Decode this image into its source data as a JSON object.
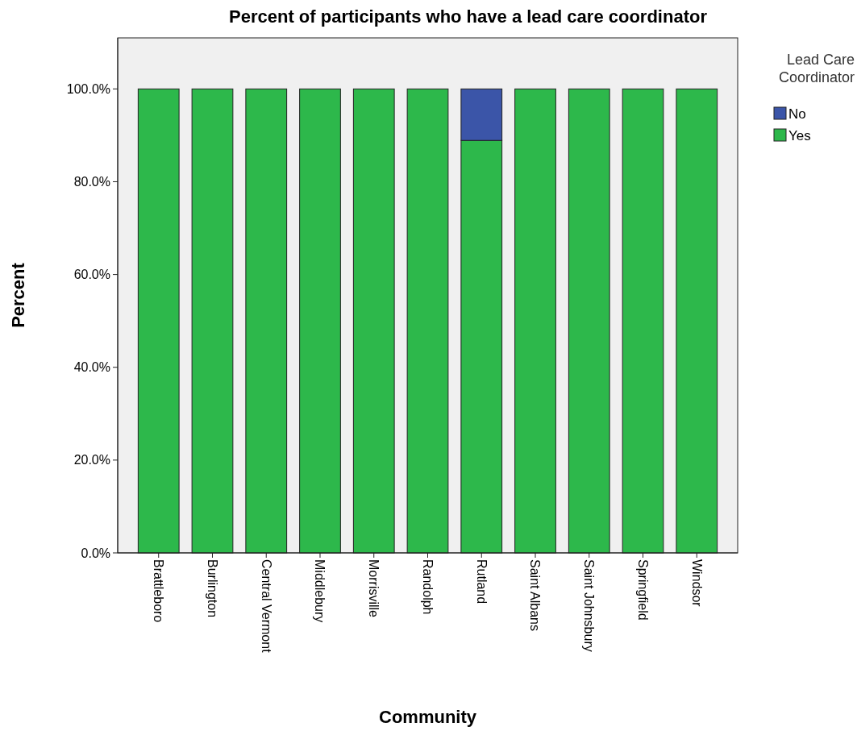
{
  "chart_data": {
    "type": "bar",
    "title": "Percent of participants who have a lead care coordinator",
    "xlabel": "Community",
    "ylabel": "Percent",
    "legend_title": "Lead Care Coordinator",
    "categories": [
      "Brattleboro",
      "Burlington",
      "Central Vermont",
      "Middlebury",
      "Morrisville",
      "Randolph",
      "Rutland",
      "Saint Albans",
      "Saint Johnsbury",
      "Springfield",
      "Windsor"
    ],
    "stacked": true,
    "legend": "top right",
    "grid": false,
    "series": [
      {
        "name": "Yes",
        "color": "#2db84b",
        "values": [
          100,
          100,
          100,
          100,
          100,
          100,
          88.9,
          100,
          100,
          100,
          100
        ]
      },
      {
        "name": "No",
        "color": "#3b55a8",
        "values": [
          null,
          null,
          null,
          null,
          null,
          null,
          11.1,
          null,
          null,
          null,
          null
        ]
      }
    ],
    "ylim": [
      0,
      111
    ],
    "yticks": [
      {
        "value": 0,
        "label": "0.0%"
      },
      {
        "value": 20,
        "label": "20.0%"
      },
      {
        "value": 40,
        "label": "40.0%"
      },
      {
        "value": 60,
        "label": "60.0%"
      },
      {
        "value": 80,
        "label": "80.0%"
      },
      {
        "value": 100,
        "label": "100.0%"
      }
    ]
  }
}
